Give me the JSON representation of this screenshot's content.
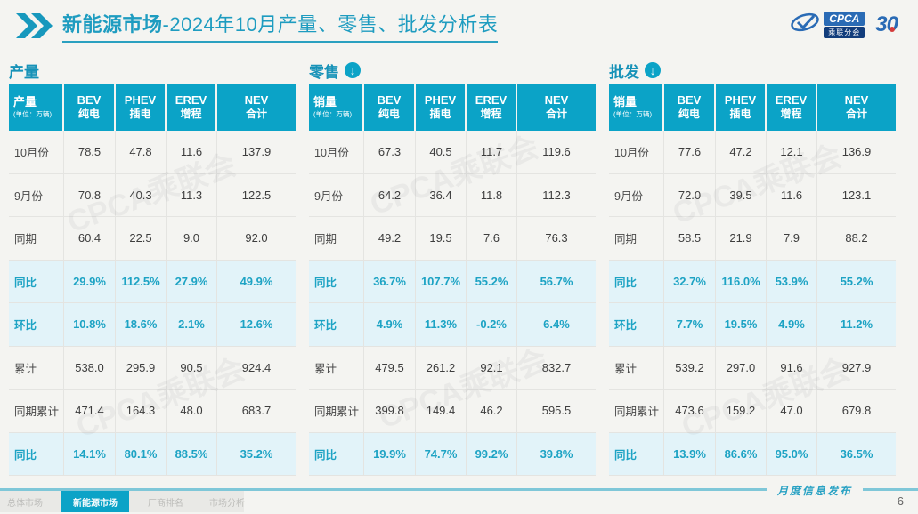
{
  "header": {
    "title_strong": "新能源市场",
    "title_rest": "-2024年10月产量、零售、批发分析表",
    "logo_cpca_acronym": "CPCA",
    "logo_cpca_name": "乘联分会",
    "logo_anniversary": "30"
  },
  "watermark_text": "CPCA乘联会",
  "chart_data": [
    {
      "type": "table",
      "section_title": "产量",
      "trend_icon": null,
      "corner_label": "产量",
      "unit_label": "(单位：万辆)",
      "columns": [
        {
          "en": "BEV",
          "cn": "纯电"
        },
        {
          "en": "PHEV",
          "cn": "插电"
        },
        {
          "en": "EREV",
          "cn": "增程"
        },
        {
          "en": "NEV",
          "cn": "合计"
        }
      ],
      "rows": [
        {
          "label": "10月份",
          "values": [
            "78.5",
            "47.8",
            "11.6",
            "137.9"
          ],
          "highlight": false
        },
        {
          "label": "9月份",
          "values": [
            "70.8",
            "40.3",
            "11.3",
            "122.5"
          ],
          "highlight": false
        },
        {
          "label": "同期",
          "values": [
            "60.4",
            "22.5",
            "9.0",
            "92.0"
          ],
          "highlight": false
        },
        {
          "label": "同比",
          "values": [
            "29.9%",
            "112.5%",
            "27.9%",
            "49.9%"
          ],
          "highlight": true
        },
        {
          "label": "环比",
          "values": [
            "10.8%",
            "18.6%",
            "2.1%",
            "12.6%"
          ],
          "highlight": true
        },
        {
          "label": "累计",
          "values": [
            "538.0",
            "295.9",
            "90.5",
            "924.4"
          ],
          "highlight": false
        },
        {
          "label": "同期累计",
          "values": [
            "471.4",
            "164.3",
            "48.0",
            "683.7"
          ],
          "highlight": false
        },
        {
          "label": "同比",
          "values": [
            "14.1%",
            "80.1%",
            "88.5%",
            "35.2%"
          ],
          "highlight": true
        }
      ]
    },
    {
      "type": "table",
      "section_title": "零售",
      "trend_icon": "down-arrow",
      "corner_label": "销量",
      "unit_label": "(单位：万辆)",
      "columns": [
        {
          "en": "BEV",
          "cn": "纯电"
        },
        {
          "en": "PHEV",
          "cn": "插电"
        },
        {
          "en": "EREV",
          "cn": "增程"
        },
        {
          "en": "NEV",
          "cn": "合计"
        }
      ],
      "rows": [
        {
          "label": "10月份",
          "values": [
            "67.3",
            "40.5",
            "11.7",
            "119.6"
          ],
          "highlight": false
        },
        {
          "label": "9月份",
          "values": [
            "64.2",
            "36.4",
            "11.8",
            "112.3"
          ],
          "highlight": false
        },
        {
          "label": "同期",
          "values": [
            "49.2",
            "19.5",
            "7.6",
            "76.3"
          ],
          "highlight": false
        },
        {
          "label": "同比",
          "values": [
            "36.7%",
            "107.7%",
            "55.2%",
            "56.7%"
          ],
          "highlight": true
        },
        {
          "label": "环比",
          "values": [
            "4.9%",
            "11.3%",
            "-0.2%",
            "6.4%"
          ],
          "highlight": true
        },
        {
          "label": "累计",
          "values": [
            "479.5",
            "261.2",
            "92.1",
            "832.7"
          ],
          "highlight": false
        },
        {
          "label": "同期累计",
          "values": [
            "399.8",
            "149.4",
            "46.2",
            "595.5"
          ],
          "highlight": false
        },
        {
          "label": "同比",
          "values": [
            "19.9%",
            "74.7%",
            "99.2%",
            "39.8%"
          ],
          "highlight": true
        }
      ]
    },
    {
      "type": "table",
      "section_title": "批发",
      "trend_icon": "down-arrow",
      "corner_label": "销量",
      "unit_label": "(单位：万辆)",
      "columns": [
        {
          "en": "BEV",
          "cn": "纯电"
        },
        {
          "en": "PHEV",
          "cn": "插电"
        },
        {
          "en": "EREV",
          "cn": "增程"
        },
        {
          "en": "NEV",
          "cn": "合计"
        }
      ],
      "rows": [
        {
          "label": "10月份",
          "values": [
            "77.6",
            "47.2",
            "12.1",
            "136.9"
          ],
          "highlight": false
        },
        {
          "label": "9月份",
          "values": [
            "72.0",
            "39.5",
            "11.6",
            "123.1"
          ],
          "highlight": false
        },
        {
          "label": "同期",
          "values": [
            "58.5",
            "21.9",
            "7.9",
            "88.2"
          ],
          "highlight": false
        },
        {
          "label": "同比",
          "values": [
            "32.7%",
            "116.0%",
            "53.9%",
            "55.2%"
          ],
          "highlight": true
        },
        {
          "label": "环比",
          "values": [
            "7.7%",
            "19.5%",
            "4.9%",
            "11.2%"
          ],
          "highlight": true
        },
        {
          "label": "累计",
          "values": [
            "539.2",
            "297.0",
            "91.6",
            "927.9"
          ],
          "highlight": false
        },
        {
          "label": "同期累计",
          "values": [
            "473.6",
            "159.2",
            "47.0",
            "679.8"
          ],
          "highlight": false
        },
        {
          "label": "同比",
          "values": [
            "13.9%",
            "86.6%",
            "95.0%",
            "36.5%"
          ],
          "highlight": true
        }
      ]
    }
  ],
  "footer": {
    "tabs": [
      {
        "label": "总体市场",
        "active": false
      },
      {
        "label": "新能源市场",
        "active": true
      },
      {
        "label": "厂商排名",
        "active": false
      },
      {
        "label": "市场分析",
        "active": false
      }
    ],
    "right_label": "月度信息发布",
    "page_number": "6"
  }
}
